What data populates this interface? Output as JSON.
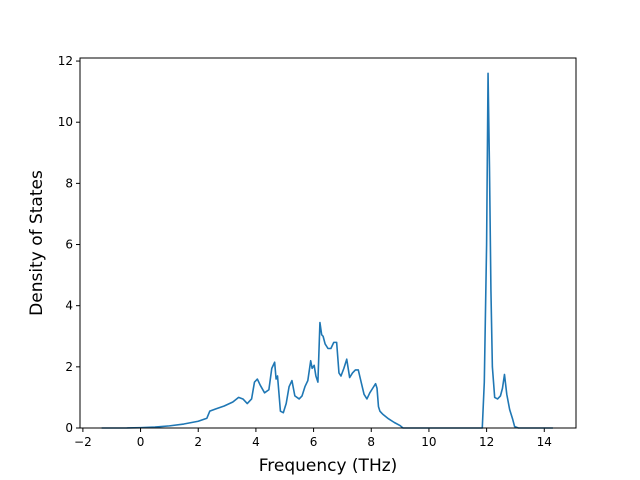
{
  "chart_data": {
    "type": "line",
    "title": "",
    "xlabel": "Frequency (THz)",
    "ylabel": "Density of States",
    "xlim": [
      -2.1,
      15.1
    ],
    "ylim": [
      0,
      12.1
    ],
    "xticks": [
      -2,
      0,
      2,
      4,
      6,
      8,
      10,
      12,
      14
    ],
    "yticks": [
      0,
      2,
      4,
      6,
      8,
      10,
      12
    ],
    "grid": false,
    "legend": "none",
    "series": [
      {
        "color": "#1f77b4",
        "x": [
          -1.35,
          -0.5,
          0,
          0.5,
          1.0,
          1.5,
          2.0,
          2.3,
          2.4,
          2.6,
          2.9,
          3.2,
          3.4,
          3.55,
          3.7,
          3.85,
          3.95,
          4.05,
          4.15,
          4.3,
          4.45,
          4.55,
          4.65,
          4.7,
          4.75,
          4.85,
          4.95,
          5.05,
          5.15,
          5.25,
          5.35,
          5.5,
          5.6,
          5.7,
          5.8,
          5.9,
          5.95,
          6.02,
          6.08,
          6.15,
          6.22,
          6.28,
          6.33,
          6.4,
          6.5,
          6.6,
          6.7,
          6.8,
          6.88,
          6.95,
          7.05,
          7.15,
          7.25,
          7.35,
          7.45,
          7.55,
          7.65,
          7.75,
          7.85,
          7.95,
          8.05,
          8.15,
          8.2,
          8.25,
          8.3,
          8.4,
          8.6,
          8.8,
          9.0,
          9.1,
          9.5,
          10.5,
          11.5,
          11.85,
          11.92,
          12.0,
          12.05,
          12.1,
          12.15,
          12.2,
          12.28,
          12.38,
          12.48,
          12.55,
          12.62,
          12.7,
          12.8,
          12.9,
          12.97,
          13.1,
          13.5,
          14.0,
          14.3
        ],
        "y": [
          0.0,
          0.0,
          0.01,
          0.03,
          0.07,
          0.13,
          0.22,
          0.32,
          0.55,
          0.62,
          0.72,
          0.85,
          1.0,
          0.95,
          0.8,
          0.95,
          1.5,
          1.6,
          1.4,
          1.15,
          1.25,
          1.95,
          2.15,
          1.6,
          1.7,
          0.55,
          0.5,
          0.8,
          1.35,
          1.55,
          1.05,
          0.95,
          1.05,
          1.35,
          1.55,
          2.2,
          1.95,
          2.05,
          1.7,
          1.5,
          3.45,
          3.05,
          3.0,
          2.75,
          2.6,
          2.6,
          2.8,
          2.8,
          1.8,
          1.7,
          1.95,
          2.25,
          1.65,
          1.8,
          1.9,
          1.9,
          1.5,
          1.1,
          0.95,
          1.15,
          1.3,
          1.45,
          1.3,
          0.7,
          0.55,
          0.45,
          0.3,
          0.18,
          0.08,
          0.0,
          0.0,
          0.0,
          0.0,
          0.0,
          1.5,
          6.0,
          11.6,
          8.5,
          4.5,
          2.0,
          1.0,
          0.95,
          1.05,
          1.3,
          1.75,
          1.1,
          0.6,
          0.3,
          0.05,
          0.0,
          0.0,
          0.0,
          0.0
        ]
      }
    ]
  }
}
